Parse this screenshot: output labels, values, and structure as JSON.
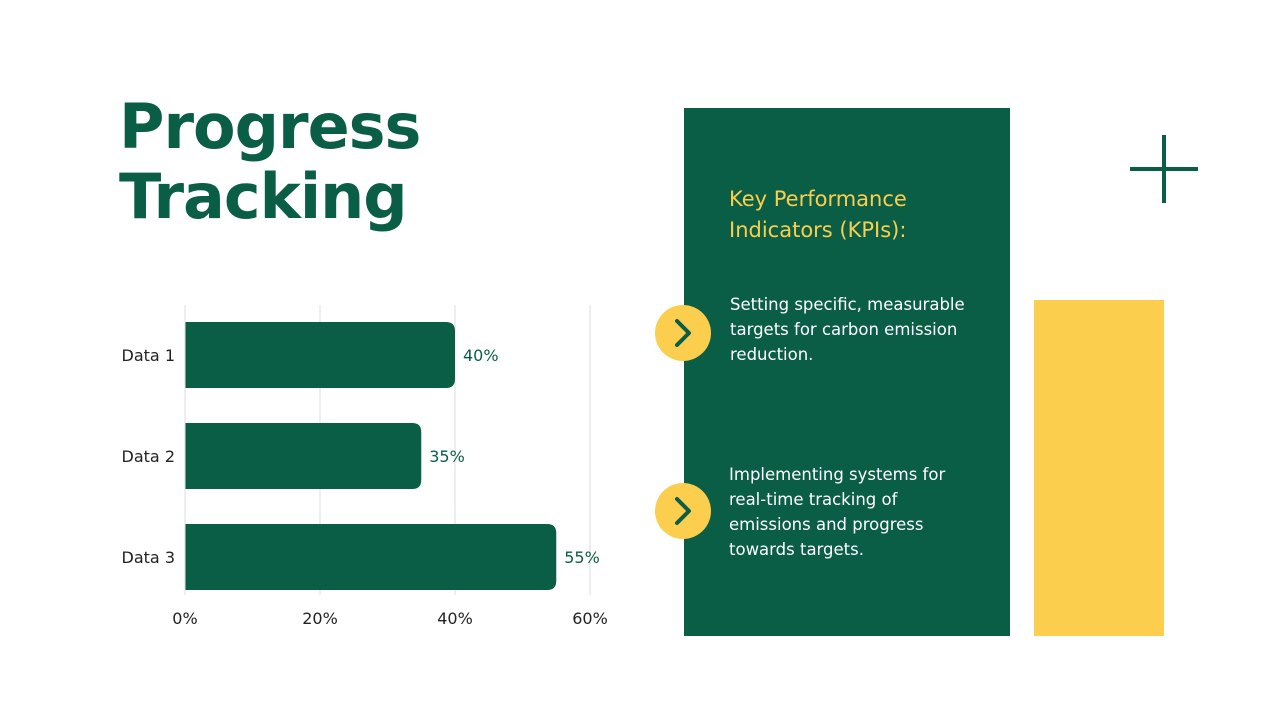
{
  "page_title": {
    "line1": "Progress",
    "line2": "Tracking"
  },
  "kpi": {
    "heading": "Key Performance Indicators (KPIs):",
    "items": [
      "Setting specific, measurable targets for carbon emission reduction.",
      "Implementing systems for real-time tracking of emissions and progress towards targets."
    ]
  },
  "icons": {
    "bullet": "chevron-right-icon",
    "decoration": "plus-icon"
  },
  "colors": {
    "primary_green": "#0b5e46",
    "accent_yellow": "#fcce4d",
    "text_dark": "#222222",
    "grid": "#dddddd"
  },
  "chart_data": {
    "type": "bar",
    "orientation": "horizontal",
    "categories": [
      "Data 1",
      "Data 2",
      "Data 3"
    ],
    "values": [
      40,
      35,
      55
    ],
    "value_labels": [
      "40%",
      "35%",
      "55%"
    ],
    "x_ticks": [
      0,
      20,
      40,
      60
    ],
    "x_tick_labels": [
      "0%",
      "20%",
      "40%",
      "60%"
    ],
    "xlim": [
      0,
      60
    ],
    "title": "",
    "xlabel": "",
    "ylabel": "",
    "grid": true,
    "legend": "none"
  }
}
